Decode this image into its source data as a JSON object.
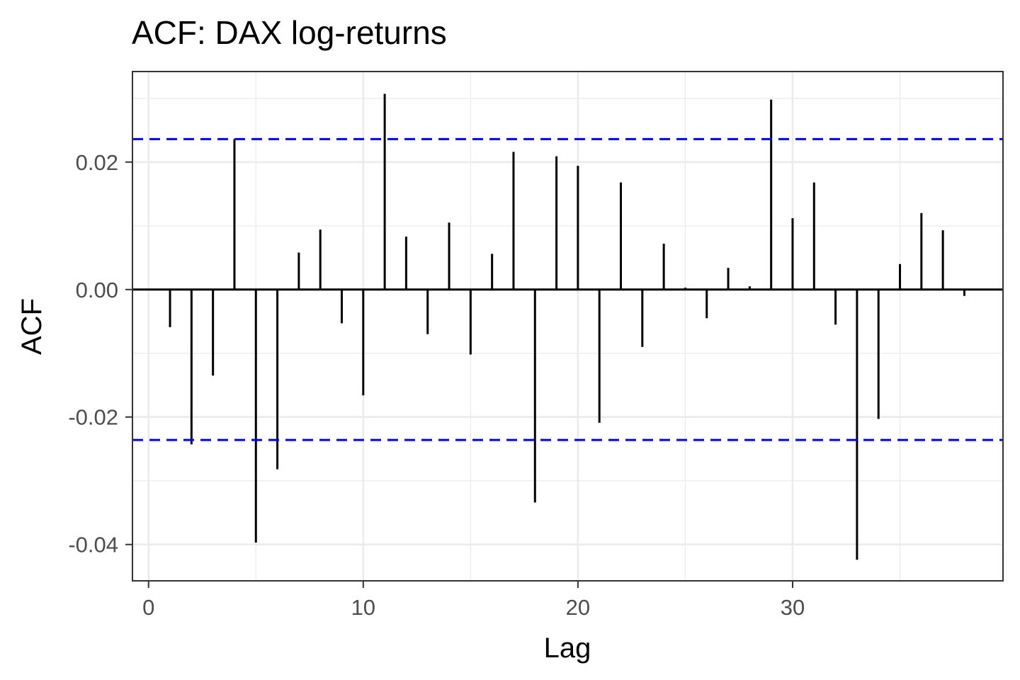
{
  "chart_data": {
    "type": "bar",
    "title": "ACF: DAX log-returns",
    "xlabel": "Lag",
    "ylabel": "ACF",
    "xlim": [
      -0.75,
      39.8
    ],
    "ylim": [
      -0.0457,
      0.0342
    ],
    "x_ticks": [
      0,
      10,
      20,
      30
    ],
    "x_tick_labels": [
      "0",
      "10",
      "20",
      "30"
    ],
    "y_ticks": [
      -0.04,
      -0.02,
      0.0,
      0.02
    ],
    "y_tick_labels": [
      "-0.04",
      "-0.02",
      "0.00",
      "0.02"
    ],
    "grid": true,
    "confidence_bounds": [
      0.0236,
      -0.0236
    ],
    "colors": {
      "bars": "#000000",
      "bounds": "#0000ff",
      "grid": "#ebebeb",
      "panel_border": "#333333"
    },
    "lags": [
      1,
      2,
      3,
      4,
      5,
      6,
      7,
      8,
      9,
      10,
      11,
      12,
      13,
      14,
      15,
      16,
      17,
      18,
      19,
      20,
      21,
      22,
      23,
      24,
      25,
      26,
      27,
      28,
      29,
      30,
      31,
      32,
      33,
      34,
      35,
      36,
      37,
      38
    ],
    "values": [
      -0.0059,
      -0.0243,
      -0.0135,
      0.0236,
      -0.0397,
      -0.0282,
      0.0058,
      0.0094,
      -0.0053,
      -0.0166,
      0.0307,
      0.0083,
      -0.007,
      0.0105,
      -0.0102,
      0.0056,
      0.0216,
      -0.0334,
      0.0209,
      0.0194,
      -0.0209,
      0.0168,
      -0.009,
      0.0072,
      0.0003,
      -0.0045,
      0.0034,
      0.0005,
      0.0298,
      0.0112,
      0.0168,
      -0.0055,
      -0.0424,
      -0.0203,
      0.004,
      0.012,
      0.0093,
      -0.001
    ]
  }
}
